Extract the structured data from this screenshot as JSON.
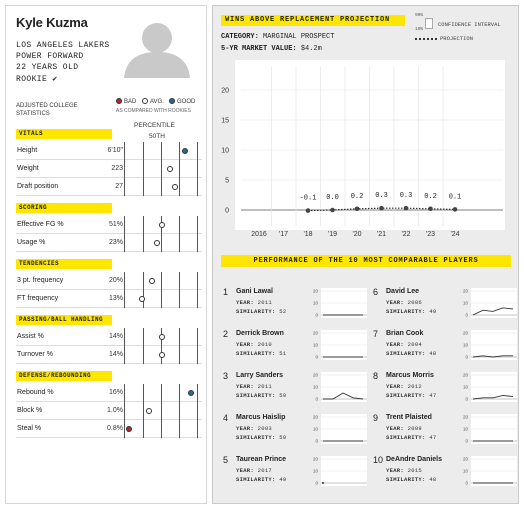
{
  "player": {
    "name": "Kyle Kuzma",
    "team": "LOS ANGELES LAKERS",
    "position": "POWER FORWARD",
    "age": "22 YEARS OLD",
    "status": "ROOKIE ✔"
  },
  "stats_header": {
    "label": "ADJUSTED COLLEGE STATISTICS",
    "legend_bad": "BAD",
    "legend_avg": "AVG.",
    "legend_good": "GOOD",
    "legend_note": "AS COMPARED WITH ROOKIES",
    "percentile_label": "PERCENTILE",
    "percentile_value": "50TH"
  },
  "colors": {
    "bad": "#b5262a",
    "good": "#2a6a91",
    "avg": "#ffffff",
    "accent": "#ffe600"
  },
  "sections": [
    {
      "title": "VITALS",
      "rows": [
        {
          "label": "Height",
          "value": "6'10\"",
          "percentile": 0.83,
          "rating": "good"
        },
        {
          "label": "Weight",
          "value": "223",
          "percentile": 0.62,
          "rating": "avg"
        },
        {
          "label": "Draft position",
          "value": "27",
          "percentile": 0.69,
          "rating": "avg"
        }
      ]
    },
    {
      "title": "SCORING",
      "rows": [
        {
          "label": "Effective FG %",
          "value": "51%",
          "percentile": 0.52,
          "rating": "avg"
        },
        {
          "label": "Usage %",
          "value": "23%",
          "percentile": 0.45,
          "rating": "avg"
        }
      ]
    },
    {
      "title": "TENDENCIES",
      "rows": [
        {
          "label": "3 pt. frequency",
          "value": "20%",
          "percentile": 0.38,
          "rating": "avg"
        },
        {
          "label": "FT frequency",
          "value": "13%",
          "percentile": 0.24,
          "rating": "avg"
        }
      ]
    },
    {
      "title": "PASSING/BALL HANDLING",
      "rows": [
        {
          "label": "Assist %",
          "value": "14%",
          "percentile": 0.52,
          "rating": "avg"
        },
        {
          "label": "Turnover %",
          "value": "14%",
          "percentile": 0.52,
          "rating": "avg"
        }
      ]
    },
    {
      "title": "DEFENSE/REBOUNDING",
      "rows": [
        {
          "label": "Rebound %",
          "value": "16%",
          "percentile": 0.92,
          "rating": "good"
        },
        {
          "label": "Block %",
          "value": "1.0%",
          "percentile": 0.33,
          "rating": "avg"
        },
        {
          "label": "Steal %",
          "value": "0.8%",
          "percentile": 0.06,
          "rating": "bad"
        }
      ]
    }
  ],
  "war": {
    "title": "WINS ABOVE REPLACEMENT PROJECTION",
    "category_label": "CATEGORY:",
    "category_value": "MARGINAL PROSPECT",
    "market_label": "5-YR MARKET VALUE:",
    "market_value": "$4.2m",
    "legend_ci_top": "90%",
    "legend_ci_bottom": "10%",
    "legend_ci": "CONFIDENCE INTERVAL",
    "legend_projection": "PROJECTION"
  },
  "chart_data": {
    "type": "line",
    "x": [
      "'18",
      "'19",
      "'20",
      "'21",
      "'22",
      "'23",
      "'24"
    ],
    "values": [
      -0.1,
      0.0,
      0.2,
      0.3,
      0.3,
      0.2,
      0.1
    ],
    "value_labels": [
      "-0.1",
      "0.0",
      "0.2",
      "0.3",
      "0.3",
      "0.2",
      "0.1"
    ],
    "x_tick_labels": [
      "2016",
      "'17",
      "'18",
      "'19",
      "'20",
      "'21",
      "'22",
      "'23",
      "'24"
    ],
    "y_ticks": [
      "0",
      "5",
      "10",
      "15",
      "20"
    ],
    "ylim": [
      -2,
      22
    ],
    "series_label": "PROJECTION"
  },
  "comparables": {
    "title": "PERFORMANCE OF THE 10 MOST COMPARABLE PLAYERS",
    "year_label": "YEAR:",
    "sim_label": "SIMILARITY:",
    "spark_ticks": [
      "20",
      "10",
      "0"
    ],
    "players": [
      {
        "rank": "1",
        "name": "Gani Lawal",
        "year": "2011",
        "similarity": "52",
        "spark": [
          0,
          0,
          0,
          0,
          0
        ]
      },
      {
        "rank": "2",
        "name": "Derrick Brown",
        "year": "2010",
        "similarity": "51",
        "spark": [
          0,
          0,
          0,
          0,
          0
        ]
      },
      {
        "rank": "3",
        "name": "Larry Sanders",
        "year": "2011",
        "similarity": "50",
        "spark": [
          0,
          0,
          5,
          1,
          0
        ]
      },
      {
        "rank": "4",
        "name": "Marcus Haislip",
        "year": "2003",
        "similarity": "50",
        "spark": [
          0,
          0,
          0,
          0,
          0
        ]
      },
      {
        "rank": "5",
        "name": "Taurean Prince",
        "year": "2017",
        "similarity": "49",
        "spark": [
          0
        ]
      },
      {
        "rank": "6",
        "name": "David Lee",
        "year": "2006",
        "similarity": "49",
        "spark": [
          0,
          4,
          3,
          6,
          5
        ]
      },
      {
        "rank": "7",
        "name": "Brian Cook",
        "year": "2004",
        "similarity": "48",
        "spark": [
          0,
          1,
          0,
          1,
          1
        ]
      },
      {
        "rank": "8",
        "name": "Marcus Morris",
        "year": "2012",
        "similarity": "47",
        "spark": [
          0,
          1,
          1,
          3,
          2
        ]
      },
      {
        "rank": "9",
        "name": "Trent Plaisted",
        "year": "2009",
        "similarity": "47",
        "spark": [
          0,
          0,
          0,
          0,
          0
        ]
      },
      {
        "rank": "10",
        "name": "DeAndre Daniels",
        "year": "2015",
        "similarity": "48",
        "spark": [
          0,
          0,
          0,
          0,
          0
        ]
      }
    ]
  }
}
